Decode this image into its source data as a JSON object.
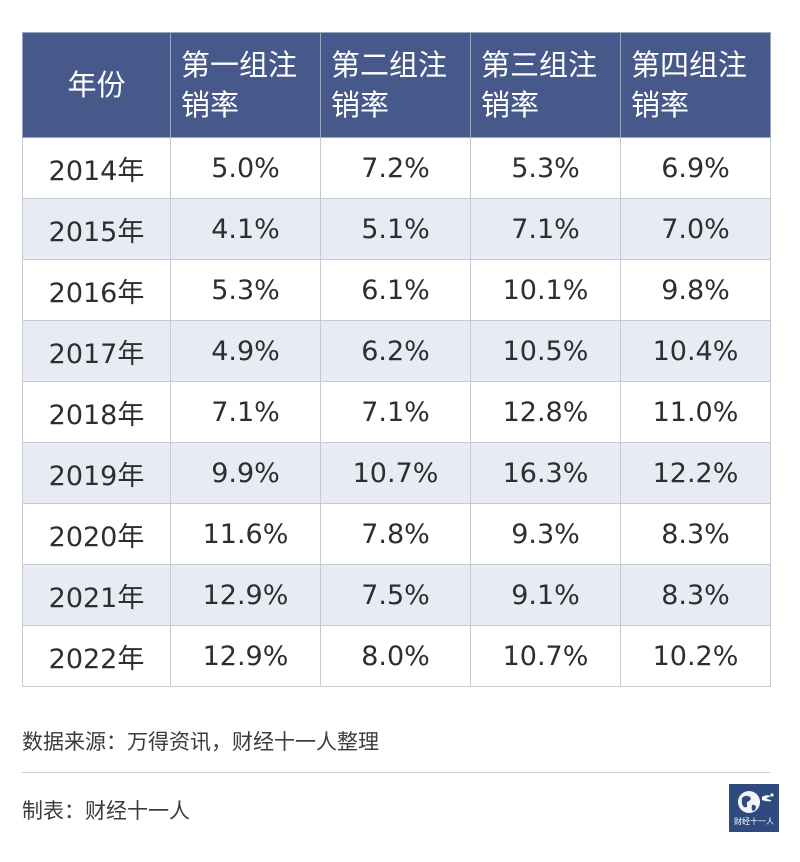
{
  "chart_data": {
    "type": "table",
    "columns": [
      "年份",
      "第一组注销率",
      "第二组注销率",
      "第三组注销率",
      "第四组注销率"
    ],
    "rows": [
      [
        "2014年",
        "5.0%",
        "7.2%",
        "5.3%",
        "6.9%"
      ],
      [
        "2015年",
        "4.1%",
        "5.1%",
        "7.1%",
        "7.0%"
      ],
      [
        "2016年",
        "5.3%",
        "6.1%",
        "10.1%",
        "9.8%"
      ],
      [
        "2017年",
        "4.9%",
        "6.2%",
        "10.5%",
        "10.4%"
      ],
      [
        "2018年",
        "7.1%",
        "7.1%",
        "12.8%",
        "11.0%"
      ],
      [
        "2019年",
        "9.9%",
        "10.7%",
        "16.3%",
        "12.2%"
      ],
      [
        "2020年",
        "11.6%",
        "7.8%",
        "9.3%",
        "8.3%"
      ],
      [
        "2021年",
        "12.9%",
        "7.5%",
        "9.1%",
        "8.3%"
      ],
      [
        "2022年",
        "12.9%",
        "8.0%",
        "10.7%",
        "10.2%"
      ]
    ]
  },
  "footer": {
    "source": "数据来源：万得资讯，财经十一人整理",
    "maker": "制表：财经十一人"
  },
  "logo": {
    "text": "财经十一人",
    "icon": "globe-icon"
  },
  "colors": {
    "header_bg": "#46598a",
    "alt_row_bg": "#e8ebf3",
    "border": "#c6cad2",
    "logo_bg": "#2f4a7e"
  }
}
